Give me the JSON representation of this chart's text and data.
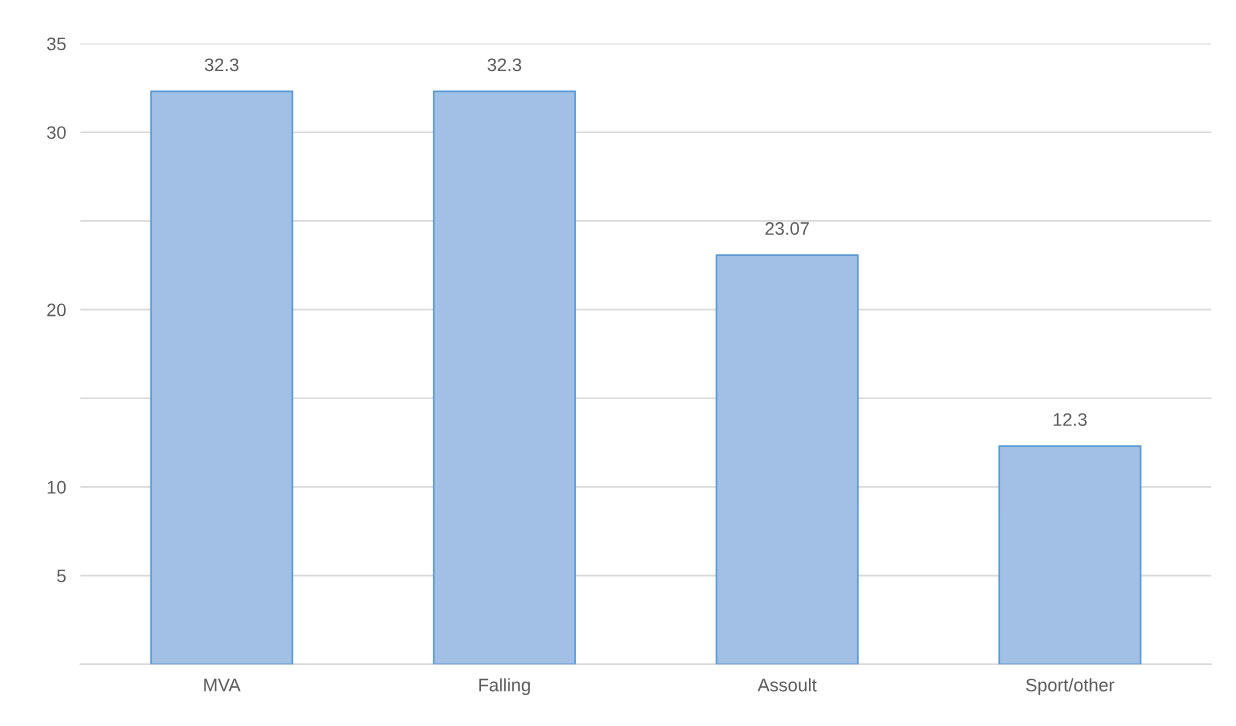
{
  "chart_data": {
    "type": "bar",
    "categories": [
      "MVA",
      "Falling",
      "Assoult",
      "Sport/other"
    ],
    "values": [
      32.3,
      32.3,
      23.07,
      12.3
    ],
    "color": "#a2bfe5",
    "ylim": [
      0,
      35
    ],
    "yticks": [
      {
        "value": 0,
        "label": null
      },
      5,
      10,
      {
        "value": 15,
        "label": null
      },
      20,
      {
        "value": 25,
        "label": null
      },
      30,
      35
    ],
    "grid": "y",
    "data_labels": true
  }
}
